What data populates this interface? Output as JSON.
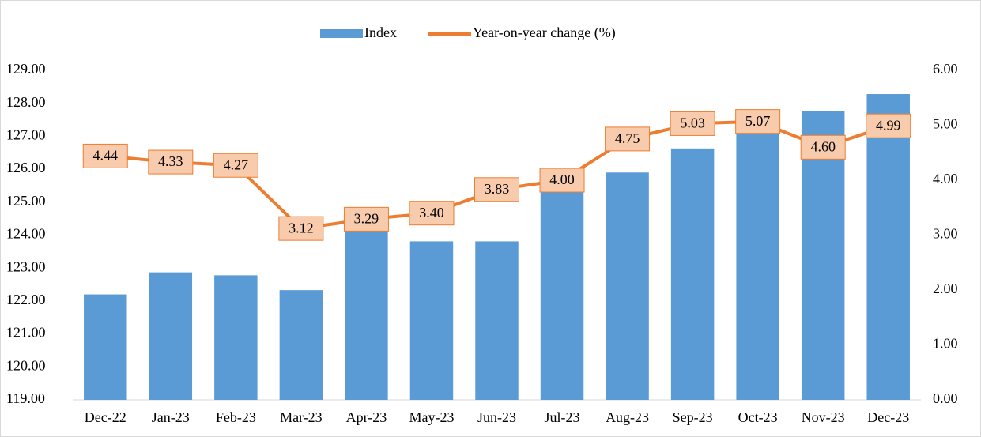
{
  "chart_data": {
    "type": "bar-line",
    "categories": [
      "Dec-22",
      "Jan-23",
      "Feb-23",
      "Mar-23",
      "Apr-23",
      "May-23",
      "Jun-23",
      "Jul-23",
      "Aug-23",
      "Sep-23",
      "Oct-23",
      "Nov-23",
      "Dec-23"
    ],
    "series": [
      {
        "name": "Index",
        "type": "bar",
        "color": "#5b9bd5",
        "values": [
          122.2,
          122.87,
          122.78,
          122.33,
          124.2,
          123.81,
          123.81,
          125.3,
          125.9,
          126.63,
          127.3,
          127.76,
          128.28
        ]
      },
      {
        "name": "Year-on-year change (%)",
        "type": "line",
        "axis": "y2",
        "color": "#ed7d31",
        "label_fill": "#f8cbad",
        "values": [
          4.44,
          4.33,
          4.27,
          3.12,
          3.29,
          3.4,
          3.83,
          4.0,
          4.75,
          5.03,
          5.07,
          4.6,
          4.99
        ],
        "value_labels": [
          "4.44",
          "4.33",
          "4.27",
          "3.12",
          "3.29",
          "3.40",
          "3.83",
          "4.00",
          "4.75",
          "5.03",
          "5.07",
          "4.60",
          "4.99"
        ]
      }
    ],
    "ylim": [
      119,
      129
    ],
    "yticks": [
      {
        "value": 119,
        "label": "119.00"
      },
      {
        "value": 120,
        "label": "120.00"
      },
      {
        "value": 121,
        "label": "121.00"
      },
      {
        "value": 122,
        "label": "122.00"
      },
      {
        "value": 123,
        "label": "123.00"
      },
      {
        "value": 124,
        "label": "124.00"
      },
      {
        "value": 125,
        "label": "125.00"
      },
      {
        "value": 126,
        "label": "126.00"
      },
      {
        "value": 127,
        "label": "127.00"
      },
      {
        "value": 128,
        "label": "128.00"
      },
      {
        "value": 129,
        "label": "129.00"
      }
    ],
    "y2lim": [
      0,
      6
    ],
    "y2ticks": [
      {
        "value": 0,
        "label": "0.00"
      },
      {
        "value": 1,
        "label": "1.00"
      },
      {
        "value": 2,
        "label": "2.00"
      },
      {
        "value": 3,
        "label": "3.00"
      },
      {
        "value": 4,
        "label": "4.00"
      },
      {
        "value": 5,
        "label": "5.00"
      },
      {
        "value": 6,
        "label": "6.00"
      }
    ],
    "legend": "top",
    "grid": false
  }
}
